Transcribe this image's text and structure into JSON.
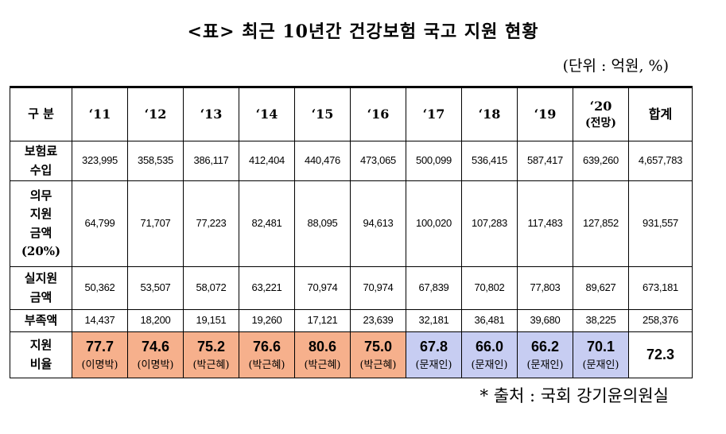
{
  "title": "<표> 최근 10년간 건강보험 국고 지원 현황",
  "unit": "(단위 : 억원, %)",
  "source": "* 출처 : 국회 강기윤의원실",
  "header": {
    "label": "구 분",
    "years": [
      "‘11",
      "‘12",
      "‘13",
      "‘14",
      "‘15",
      "‘16",
      "‘17",
      "‘18",
      "‘19",
      "‘20"
    ],
    "forecast_note": "(전망)",
    "total": "합계"
  },
  "rows": [
    {
      "label": [
        "보험료",
        "수입"
      ],
      "values": [
        "323,995",
        "358,535",
        "386,117",
        "412,404",
        "440,476",
        "473,065",
        "500,099",
        "536,415",
        "587,417",
        "639,260"
      ],
      "total": "4,657,783"
    },
    {
      "label": [
        "의무",
        "지원",
        "금액",
        "(20%)"
      ],
      "values": [
        "64,799",
        "71,707",
        "77,223",
        "82,481",
        "88,095",
        "94,613",
        "100,020",
        "107,283",
        "117,483",
        "127,852"
      ],
      "total": "931,557"
    },
    {
      "label": [
        "실지원",
        "금액"
      ],
      "values": [
        "50,362",
        "53,507",
        "58,072",
        "63,221",
        "70,974",
        "70,974",
        "67,839",
        "70,802",
        "77,803",
        "89,627"
      ],
      "total": "673,181"
    },
    {
      "label": [
        "부족액"
      ],
      "values": [
        "14,437",
        "18,200",
        "19,151",
        "19,260",
        "17,121",
        "23,639",
        "32,181",
        "36,481",
        "39,680",
        "38,225"
      ],
      "total": "258,376"
    }
  ],
  "support_rate": {
    "label": [
      "지원",
      "비율"
    ],
    "values": [
      "77.7",
      "74.6",
      "75.2",
      "76.6",
      "80.6",
      "75.0",
      "67.8",
      "66.0",
      "66.2",
      "70.1"
    ],
    "administrations": [
      "(이명박)",
      "(이명박)",
      "(박근혜)",
      "(박근혜)",
      "(박근혜)",
      "(박근혜)",
      "(문재인)",
      "(문재인)",
      "(문재인)",
      "(문재인)"
    ],
    "total": "72.3"
  },
  "colors": {
    "orange": "#f6b08c",
    "blue": "#c7cdf2"
  }
}
